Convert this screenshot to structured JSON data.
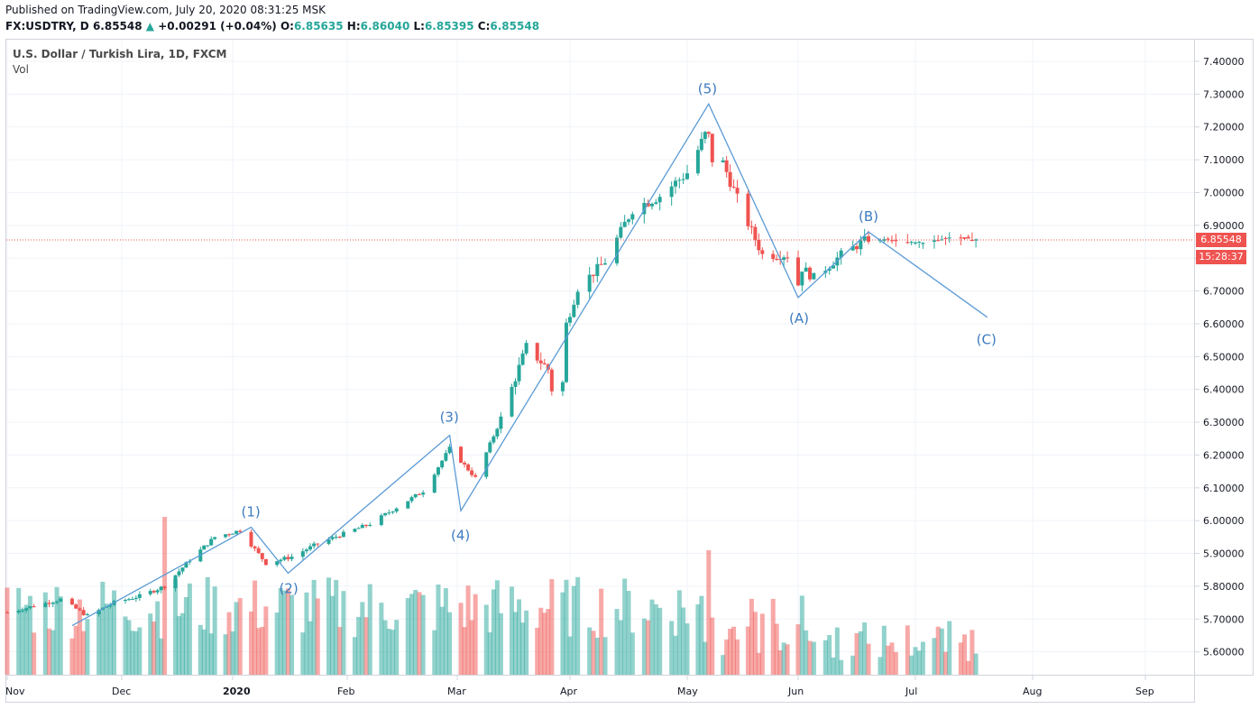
{
  "header": {
    "published": "Published on TradingView.com, July 20, 2020 08:31:25 MSK",
    "symbol": "FX:USDTRY, D",
    "last": "6.85548",
    "change": "+0.00291 (+0.04%)",
    "o_label": "O:",
    "o_value": "6.85635",
    "h_label": "H:",
    "h_value": "6.86040",
    "l_label": "L:",
    "l_value": "6.85395",
    "c_label": "C:",
    "c_value": "6.85548"
  },
  "legend": {
    "title": "U.S. Dollar / Turkish Lira, 1D, FXCM",
    "vol": "Vol"
  },
  "price_label": "6.85548",
  "countdown_label": "15:28:37",
  "colors": {
    "up": "#26a69a",
    "down": "#ef5350",
    "wave_line": "#5b9bd5",
    "wave_text": "#3d7bbf"
  },
  "chart_data": {
    "type": "candlestick",
    "y_ticks": [
      "7.40000",
      "7.30000",
      "7.20000",
      "7.10000",
      "7.00000",
      "6.90000",
      "6.80000",
      "6.70000",
      "6.60000",
      "6.50000",
      "6.40000",
      "6.30000",
      "6.20000",
      "6.10000",
      "6.00000",
      "5.90000",
      "5.80000",
      "5.70000",
      "5.60000"
    ],
    "x_ticks": [
      "Nov",
      "Dec",
      "2020",
      "Feb",
      "Mar",
      "Apr",
      "May",
      "Jun",
      "Jul",
      "Aug",
      "Sep"
    ],
    "ylim": [
      5.55,
      7.45
    ],
    "current_price": 6.85548,
    "waves": [
      {
        "label": "(1)",
        "date": "2020-01-06",
        "price": 5.98
      },
      {
        "label": "(2)",
        "date": "2020-01-16",
        "price": 5.84
      },
      {
        "label": "(3)",
        "date": "2020-02-28",
        "price": 6.26
      },
      {
        "label": "(4)",
        "date": "2020-03-02",
        "price": 6.03
      },
      {
        "label": "(5)",
        "date": "2020-05-07",
        "price": 7.27
      },
      {
        "label": "(A)",
        "date": "2020-06-01",
        "price": 6.68
      },
      {
        "label": "(B)",
        "date": "2020-06-19",
        "price": 6.88
      },
      {
        "label": "(C)",
        "date": "2020-07-20",
        "price": 6.62
      }
    ],
    "wave_path_start": {
      "date": "2019-11-18",
      "price": 5.68
    },
    "series": [
      {
        "name": "Price",
        "points": [
          {
            "date": "2019-11-01",
            "close": 5.72
          },
          {
            "date": "2019-11-08",
            "close": 5.74
          },
          {
            "date": "2019-11-15",
            "close": 5.76
          },
          {
            "date": "2019-11-22",
            "close": 5.71
          },
          {
            "date": "2019-11-29",
            "close": 5.75
          },
          {
            "date": "2019-12-06",
            "close": 5.77
          },
          {
            "date": "2019-12-13",
            "close": 5.8
          },
          {
            "date": "2019-12-20",
            "close": 5.88
          },
          {
            "date": "2019-12-27",
            "close": 5.95
          },
          {
            "date": "2020-01-03",
            "close": 5.97
          },
          {
            "date": "2020-01-10",
            "close": 5.87
          },
          {
            "date": "2020-01-17",
            "close": 5.89
          },
          {
            "date": "2020-01-24",
            "close": 5.93
          },
          {
            "date": "2020-01-31",
            "close": 5.96
          },
          {
            "date": "2020-02-07",
            "close": 5.99
          },
          {
            "date": "2020-02-14",
            "close": 6.04
          },
          {
            "date": "2020-02-21",
            "close": 6.09
          },
          {
            "date": "2020-02-28",
            "close": 6.22
          },
          {
            "date": "2020-03-06",
            "close": 6.13
          },
          {
            "date": "2020-03-13",
            "close": 6.31
          },
          {
            "date": "2020-03-20",
            "close": 6.53
          },
          {
            "date": "2020-03-27",
            "close": 6.45
          },
          {
            "date": "2020-04-03",
            "close": 6.71
          },
          {
            "date": "2020-04-10",
            "close": 6.79
          },
          {
            "date": "2020-04-17",
            "close": 6.95
          },
          {
            "date": "2020-04-24",
            "close": 6.99
          },
          {
            "date": "2020-05-01",
            "close": 7.06
          },
          {
            "date": "2020-05-07",
            "close": 7.2
          },
          {
            "date": "2020-05-15",
            "close": 6.98
          },
          {
            "date": "2020-05-22",
            "close": 6.81
          },
          {
            "date": "2020-05-29",
            "close": 6.81
          },
          {
            "date": "2020-06-05",
            "close": 6.74
          },
          {
            "date": "2020-06-12",
            "close": 6.81
          },
          {
            "date": "2020-06-19",
            "close": 6.86
          },
          {
            "date": "2020-06-26",
            "close": 6.85
          },
          {
            "date": "2020-07-03",
            "close": 6.85
          },
          {
            "date": "2020-07-10",
            "close": 6.86
          },
          {
            "date": "2020-07-17",
            "close": 6.855
          }
        ]
      },
      {
        "name": "Vol",
        "points": "relative volume bars"
      }
    ]
  }
}
